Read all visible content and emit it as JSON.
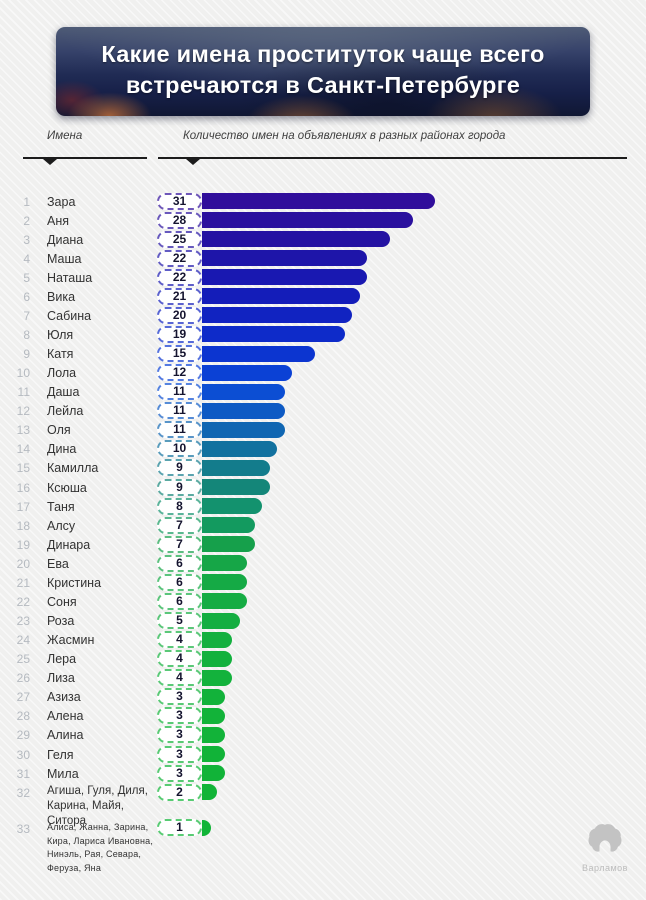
{
  "title": "Какие имена проституток чаще всего встречаются в Санкт-Петербурге",
  "columns": {
    "names_label": "Имена",
    "counts_label": "Количество имен на объявлениях в разных районах города"
  },
  "footer": {
    "brand": "Варламов"
  },
  "chart_data": {
    "type": "bar",
    "orientation": "horizontal",
    "title": "Какие имена проституток чаще всего встречаются в Санкт-Петербурге",
    "xlabel": "Количество имен на объявлениях в разных районах города",
    "ylabel": "Имена",
    "xlim": [
      0,
      31
    ],
    "grid": false,
    "legend": false,
    "value_label_style": "dashed pill badge left of each bar",
    "color_gradient": {
      "start": "#300E9B",
      "end": "#11B437"
    },
    "ranks": [
      1,
      2,
      3,
      4,
      5,
      6,
      7,
      8,
      9,
      10,
      11,
      12,
      13,
      14,
      15,
      16,
      17,
      18,
      19,
      20,
      21,
      22,
      23,
      24,
      25,
      26,
      27,
      28,
      29,
      30,
      31,
      32,
      33
    ],
    "categories": [
      "Зара",
      "Аня",
      "Диана",
      "Маша",
      "Наташа",
      "Вика",
      "Сабина",
      "Юля",
      "Катя",
      "Лола",
      "Даша",
      "Лейла",
      "Оля",
      "Дина",
      "Камилла",
      "Ксюша",
      "Таня",
      "Алсу",
      "Динара",
      "Ева",
      "Кристина",
      "Соня",
      "Роза",
      "Жасмин",
      "Лера",
      "Лиза",
      "Азиза",
      "Алена",
      "Алина",
      "Геля",
      "Мила",
      "Агиша, Гуля, Диля, Карина, Майя, Ситора",
      "Алиса, Жанна, Зарина, Кира, Лариса Ивановна, Нинэль, Рая, Севара, Феруза, Яна"
    ],
    "values": [
      31,
      28,
      25,
      22,
      22,
      21,
      20,
      19,
      15,
      12,
      11,
      11,
      11,
      10,
      9,
      9,
      8,
      7,
      7,
      6,
      6,
      6,
      5,
      4,
      4,
      4,
      3,
      3,
      3,
      3,
      3,
      2,
      1
    ],
    "bar_colors": [
      "#300E9B",
      "#2A109E",
      "#2412A2",
      "#1E15A9",
      "#1918B1",
      "#141DB9",
      "#1123C1",
      "#0E2BC9",
      "#0C35D0",
      "#0B41D5",
      "#0C4ED3",
      "#0E5AC4",
      "#1066B2",
      "#12719F",
      "#137C8C",
      "#148679",
      "#13926E",
      "#139A5F",
      "#16A04B",
      "#16A647",
      "#15AA45",
      "#15AC43",
      "#14AE41",
      "#14B03F",
      "#13B13D",
      "#13B23C",
      "#12B23A",
      "#12B339",
      "#12B339",
      "#11B338",
      "#11B338",
      "#11B437",
      "#11B437"
    ]
  }
}
